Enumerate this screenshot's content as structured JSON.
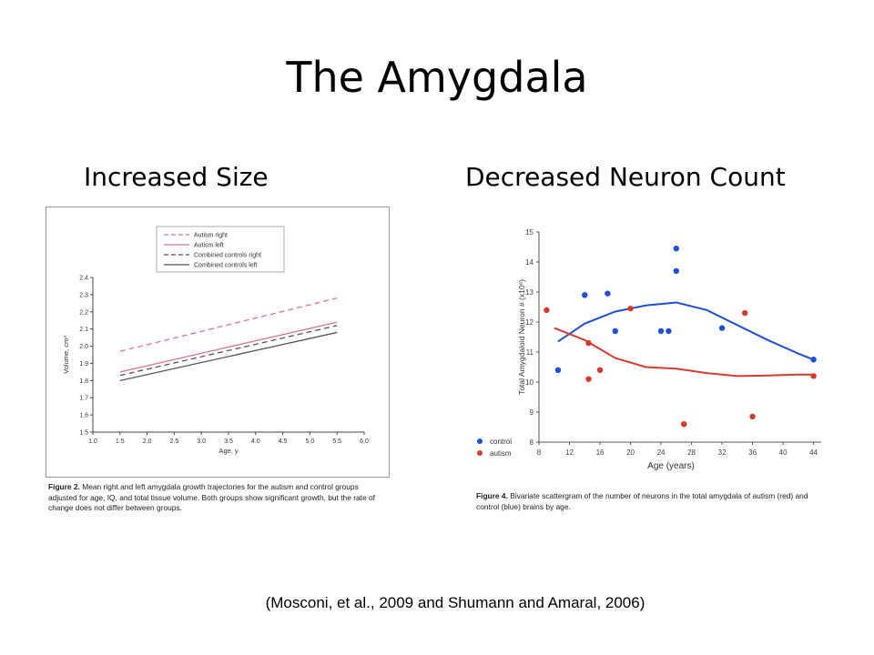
{
  "slide": {
    "title": "The Amygdala",
    "left_heading": "Increased Size",
    "right_heading": "Decreased Neuron Count",
    "citation": "(Mosconi, et al., 2009 and Shumann and Amaral, 2006)"
  },
  "figures": {
    "left": {
      "caption_label": "Figure 2.",
      "caption_text": "Mean right and left amygdala growth trajectories for the autism and control groups adjusted for age, IQ, and total tissue volume. Both groups show significant growth, but the rate of change does not differ between groups."
    },
    "right": {
      "caption_label": "Figure 4.",
      "caption_text": "Bivariate scattergram of the number of neurons in the total amygdala of autism (red) and control (blue) brains by age."
    }
  },
  "chart_data": [
    {
      "type": "line",
      "xlabel": "Age, y",
      "ylabel": "Volume, cm³",
      "xlim": [
        1.0,
        6.0
      ],
      "ylim": [
        1.5,
        2.4
      ],
      "xticks": [
        "1.0",
        "1.5",
        "2.0",
        "2.5",
        "3.0",
        "3.5",
        "4.0",
        "4.5",
        "5.0",
        "5.5",
        "6.0"
      ],
      "yticks": [
        "1.5",
        "1.6",
        "1.7",
        "1.8",
        "1.9",
        "2.0",
        "2.1",
        "2.2",
        "2.3",
        "2.4"
      ],
      "grid": false,
      "legend_position": "top-center",
      "series": [
        {
          "name": "Autism right",
          "color": "#d9768a",
          "dash": true,
          "x": [
            1.5,
            5.5
          ],
          "y": [
            1.97,
            2.28
          ]
        },
        {
          "name": "Autism left",
          "color": "#d9768a",
          "dash": false,
          "x": [
            1.5,
            5.5
          ],
          "y": [
            1.85,
            2.14
          ]
        },
        {
          "name": "Combined controls right",
          "color": "#555555",
          "dash": true,
          "x": [
            1.5,
            5.5
          ],
          "y": [
            1.83,
            2.12
          ]
        },
        {
          "name": "Combined controls left",
          "color": "#555555",
          "dash": false,
          "x": [
            1.5,
            5.5
          ],
          "y": [
            1.8,
            2.08
          ]
        }
      ]
    },
    {
      "type": "scatter",
      "xlabel": "Age (years)",
      "ylabel": "Total Amygdaloid Neuron # (x10⁶)",
      "xlim": [
        8,
        45
      ],
      "ylim": [
        8,
        15
      ],
      "xticks": [
        8,
        12,
        16,
        20,
        24,
        28,
        32,
        36,
        40,
        44
      ],
      "yticks": [
        8,
        9,
        10,
        11,
        12,
        13,
        14,
        15
      ],
      "grid": false,
      "legend_position": "bottom-left",
      "series": [
        {
          "name": "control",
          "color": "#1f4fd6",
          "points": [
            [
              10.5,
              10.4
            ],
            [
              14,
              12.9
            ],
            [
              17,
              12.95
            ],
            [
              18,
              11.7
            ],
            [
              24,
              11.7
            ],
            [
              25,
              11.7
            ],
            [
              26,
              14.45
            ],
            [
              26,
              13.7
            ],
            [
              32,
              11.8
            ],
            [
              44,
              10.75
            ]
          ],
          "trend": [
            [
              10.5,
              11.35
            ],
            [
              14,
              11.95
            ],
            [
              18,
              12.35
            ],
            [
              22,
              12.55
            ],
            [
              26,
              12.65
            ],
            [
              30,
              12.4
            ],
            [
              34,
              11.9
            ],
            [
              38,
              11.4
            ],
            [
              42,
              10.95
            ],
            [
              44,
              10.75
            ]
          ]
        },
        {
          "name": "autism",
          "color": "#d63a2f",
          "points": [
            [
              9,
              12.4
            ],
            [
              14.5,
              11.3
            ],
            [
              14.5,
              10.1
            ],
            [
              16,
              10.4
            ],
            [
              20,
              12.45
            ],
            [
              27,
              8.6
            ],
            [
              35,
              12.3
            ],
            [
              36,
              8.85
            ],
            [
              44,
              10.2
            ]
          ],
          "trend": [
            [
              10,
              11.8
            ],
            [
              14,
              11.4
            ],
            [
              18,
              10.8
            ],
            [
              22,
              10.5
            ],
            [
              26,
              10.45
            ],
            [
              30,
              10.3
            ],
            [
              34,
              10.2
            ],
            [
              38,
              10.22
            ],
            [
              42,
              10.25
            ],
            [
              44,
              10.25
            ]
          ]
        }
      ]
    }
  ]
}
